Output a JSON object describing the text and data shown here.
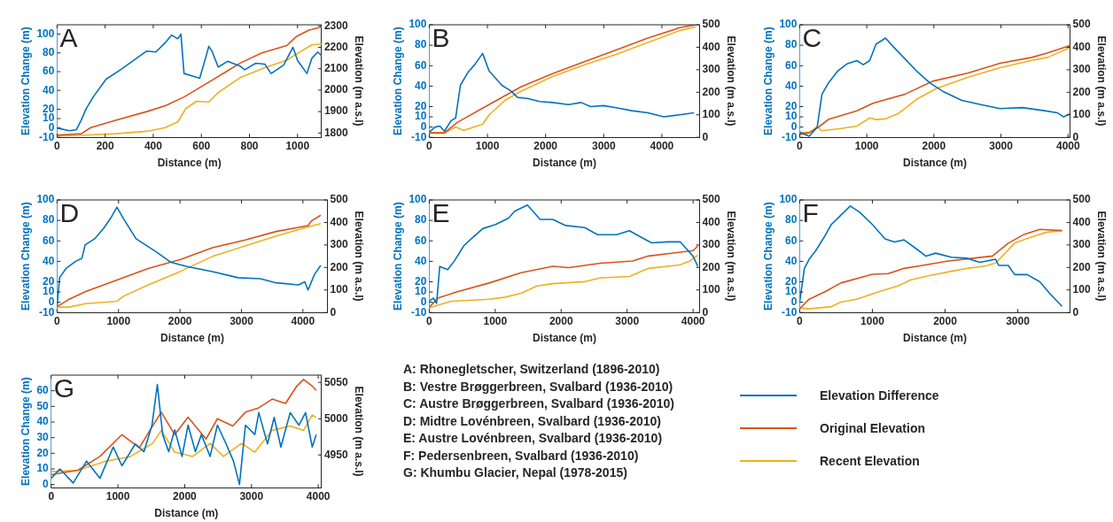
{
  "chart_data": [
    {
      "type": "line",
      "title": "A",
      "xlabel": "Distance (m)",
      "ylabel": "Elevation Change (m)",
      "y2label": "Elevation (m a.s.l)",
      "xlim": [
        0,
        1100
      ],
      "xticks": [
        0,
        200,
        400,
        600,
        800,
        1000
      ],
      "ylim": [
        -10,
        110
      ],
      "yticks": [
        -10,
        0,
        10,
        20,
        40,
        60,
        80,
        100
      ],
      "y2lim": [
        1780,
        2305
      ],
      "y2ticks": [
        1800,
        1900,
        2000,
        2100,
        2200,
        2300
      ],
      "legend": false,
      "grid": false,
      "series": [
        {
          "color": "#0072bd",
          "x": [
            0,
            50,
            80,
            100,
            120,
            150,
            204,
            269,
            334,
            373,
            411,
            450,
            476,
            502,
            515,
            528,
            567,
            593,
            618,
            631,
            644,
            670,
            709,
            761,
            780,
            826,
            864,
            890,
            942,
            981,
            1000,
            1039,
            1059,
            1084,
            1100
          ],
          "values": [
            0,
            -3,
            -2,
            8,
            20,
            33,
            52,
            63,
            75,
            82,
            81,
            91,
            99,
            95,
            100,
            58,
            55,
            53,
            75,
            87,
            82,
            65,
            71,
            66,
            62,
            69,
            68,
            58,
            67,
            86,
            72,
            58,
            74,
            81,
            77
          ]
        },
        {
          "color": "#d95319",
          "axis": "y2",
          "x": [
            0,
            101,
            140,
            243,
            373,
            450,
            528,
            631,
            761,
            852,
            955,
            994,
            1046,
            1100
          ],
          "values": [
            1790,
            1797,
            1825,
            1859,
            1900,
            1927,
            1968,
            2037,
            2126,
            2174,
            2208,
            2249,
            2279,
            2295
          ]
        },
        {
          "color": "#edb120",
          "axis": "y2",
          "x": [
            0,
            114,
            243,
            373,
            450,
            502,
            535,
            580,
            631,
            670,
            761,
            864,
            955,
            994,
            1059,
            1100
          ],
          "values": [
            1786,
            1790,
            1797,
            1808,
            1825,
            1852,
            1914,
            1948,
            1945,
            1989,
            2058,
            2105,
            2140,
            2167,
            2211,
            2215
          ]
        }
      ]
    },
    {
      "type": "line",
      "title": "B",
      "xlabel": "Distance (m)",
      "ylabel": "Elevation Change (m)",
      "y2label": "Elevation (m a.s.l)",
      "xlim": [
        0,
        4650
      ],
      "xticks": [
        0,
        1000,
        2000,
        3000,
        4000
      ],
      "ylim": [
        -10,
        100
      ],
      "yticks": [
        -10,
        0,
        10,
        20,
        40,
        60,
        80,
        100
      ],
      "y2lim": [
        0,
        500
      ],
      "y2ticks": [
        0,
        100,
        200,
        300,
        400,
        500
      ],
      "legend": false,
      "grid": false,
      "series": [
        {
          "color": "#0072bd",
          "x": [
            0,
            98,
            180,
            262,
            372,
            454,
            536,
            672,
            781,
            918,
            1027,
            1246,
            1410,
            1519,
            1683,
            1902,
            2120,
            2393,
            2612,
            2776,
            2995,
            3213,
            3486,
            3760,
            4033,
            4306,
            4552
          ],
          "values": [
            -5,
            0,
            1,
            -4,
            6,
            9,
            41,
            54,
            61,
            72,
            55,
            41,
            35,
            29,
            28,
            25,
            24,
            22,
            24,
            20,
            21,
            19,
            16,
            14,
            10,
            12,
            14
          ]
        },
        {
          "color": "#d95319",
          "axis": "y2",
          "x": [
            0,
            262,
            481,
            1027,
            1574,
            2120,
            2667,
            3213,
            3760,
            4306,
            4580
          ],
          "values": [
            20,
            20,
            66,
            145,
            224,
            283,
            336,
            388,
            441,
            487,
            500
          ]
        },
        {
          "color": "#edb120",
          "axis": "y2",
          "x": [
            0,
            262,
            454,
            590,
            918,
            1027,
            1300,
            1574,
            2120,
            2667,
            3213,
            3760,
            4306,
            4579
          ],
          "values": [
            18,
            18,
            46,
            30,
            59,
            99,
            164,
            204,
            270,
            322,
            368,
            421,
            474,
            491
          ]
        }
      ]
    },
    {
      "type": "line",
      "title": "C",
      "xlabel": "Distance (m)",
      "ylabel": "Elevation Change (m)",
      "y2label": "Elevation (m a.s.l)",
      "xlim": [
        0,
        4030
      ],
      "xticks": [
        0,
        1000,
        2000,
        3000,
        4000
      ],
      "ylim": [
        -10,
        100
      ],
      "yticks": [
        -10,
        0,
        10,
        20,
        40,
        60,
        80,
        100
      ],
      "y2lim": [
        0,
        500
      ],
      "y2ticks": [
        0,
        100,
        200,
        300,
        400,
        500
      ],
      "legend": false,
      "grid": false,
      "series": [
        {
          "color": "#0072bd",
          "x": [
            0,
            142,
            261,
            332,
            427,
            569,
            711,
            853,
            948,
            1043,
            1137,
            1280,
            1374,
            1564,
            1754,
            1943,
            2133,
            2417,
            2701,
            2986,
            3318,
            3649,
            3839,
            3934,
            4028
          ],
          "values": [
            -5,
            -9,
            0,
            32,
            43,
            55,
            62,
            65,
            61,
            65,
            81,
            87,
            80,
            67,
            54,
            43,
            35,
            26,
            22,
            18,
            19,
            16,
            14,
            10,
            13
          ]
        },
        {
          "color": "#d95319",
          "axis": "y2",
          "x": [
            0,
            142,
            284,
            427,
            853,
            1090,
            1564,
            1990,
            2512,
            2986,
            3460,
            3697,
            4028
          ],
          "values": [
            13,
            20,
            46,
            79,
            118,
            151,
            191,
            250,
            286,
            329,
            355,
            375,
            408
          ]
        },
        {
          "color": "#edb120",
          "axis": "y2",
          "x": [
            0,
            142,
            261,
            332,
            616,
            853,
            1043,
            1137,
            1280,
            1469,
            1754,
            2038,
            2512,
            2986,
            3460,
            3697,
            4028
          ],
          "values": [
            22,
            22,
            46,
            29,
            39,
            50,
            86,
            79,
            82,
            105,
            171,
            217,
            267,
            309,
            342,
            355,
            399
          ]
        }
      ]
    },
    {
      "type": "line",
      "title": "D",
      "xlabel": "Distance (m)",
      "ylabel": "Elevation Change (m)",
      "y2label": "Elevation (m a.s.l)",
      "xlim": [
        0,
        4400
      ],
      "xticks": [
        0,
        1000,
        2000,
        3000,
        4000
      ],
      "ylim": [
        -10,
        100
      ],
      "yticks": [
        -10,
        0,
        10,
        20,
        40,
        60,
        80,
        100
      ],
      "y2lim": [
        0,
        500
      ],
      "y2ticks": [
        0,
        100,
        200,
        300,
        400,
        500
      ],
      "legend": false,
      "grid": false,
      "series": [
        {
          "color": "#0072bd",
          "x": [
            0,
            41,
            145,
            301,
            404,
            456,
            611,
            767,
            870,
            974,
            1078,
            1285,
            1596,
            1855,
            2114,
            2528,
            2943,
            3306,
            3565,
            3927,
            4031,
            4083,
            4187,
            4290
          ],
          "values": [
            -4,
            24,
            33,
            40,
            43,
            56,
            62,
            73,
            82,
            93,
            82,
            62,
            50,
            39,
            35,
            30,
            24,
            23,
            19,
            17,
            20,
            12,
            27,
            36
          ]
        },
        {
          "color": "#d95319",
          "axis": "y2",
          "x": [
            0,
            197,
            456,
            974,
            1492,
            2010,
            2528,
            3047,
            3565,
            4083,
            4135,
            4290
          ],
          "values": [
            26,
            59,
            92,
            144,
            196,
            236,
            288,
            321,
            360,
            386,
            406,
            432
          ]
        },
        {
          "color": "#edb120",
          "axis": "y2",
          "x": [
            0,
            197,
            456,
            974,
            1078,
            1492,
            2010,
            2528,
            3047,
            3565,
            4083,
            4290
          ],
          "values": [
            24,
            24,
            39,
            50,
            72,
            124,
            183,
            249,
            295,
            340,
            380,
            395
          ]
        }
      ]
    },
    {
      "type": "line",
      "title": "E",
      "xlabel": "Distance (m)",
      "ylabel": "Elevation Change (m)",
      "y2label": "Elevation (m a.s.l)",
      "xlim": [
        0,
        4100
      ],
      "xticks": [
        0,
        1000,
        2000,
        3000,
        4000
      ],
      "ylim": [
        -10,
        100
      ],
      "yticks": [
        -10,
        0,
        10,
        20,
        40,
        60,
        80,
        100
      ],
      "y2lim": [
        0,
        500
      ],
      "y2ticks": [
        0,
        100,
        200,
        300,
        400,
        500
      ],
      "legend": false,
      "grid": false,
      "series": [
        {
          "color": "#0072bd",
          "x": [
            0,
            63,
            111,
            159,
            280,
            377,
            522,
            618,
            812,
            1005,
            1198,
            1295,
            1488,
            1681,
            1874,
            2068,
            2357,
            2551,
            2841,
            3034,
            3227,
            3372,
            3614,
            3807,
            4000,
            4072
          ],
          "values": [
            1,
            4,
            -1,
            35,
            32,
            40,
            55,
            61,
            72,
            76,
            82,
            89,
            95,
            81,
            81,
            75,
            73,
            66,
            66,
            70,
            63,
            58,
            59,
            59,
            45,
            35
          ]
        },
        {
          "color": "#d95319",
          "axis": "y2",
          "x": [
            0,
            135,
            425,
            908,
            1391,
            1874,
            2116,
            2599,
            3082,
            3324,
            3807,
            4000,
            4072
          ],
          "values": [
            24,
            65,
            92,
            131,
            177,
            205,
            199,
            219,
            229,
            251,
            268,
            275,
            295
          ]
        },
        {
          "color": "#edb120",
          "axis": "y2",
          "x": [
            0,
            184,
            329,
            908,
            1150,
            1391,
            1633,
            1874,
            2357,
            2599,
            3034,
            3324,
            3807,
            3952,
            4072
          ],
          "values": [
            20,
            37,
            50,
            59,
            68,
            85,
            118,
            128,
            137,
            154,
            160,
            196,
            212,
            229,
            255
          ]
        }
      ]
    },
    {
      "type": "line",
      "title": "F",
      "xlabel": "Distance (m)",
      "ylabel": "Elevation Change (m)",
      "y2label": "Elevation (m a.s.l)",
      "xlim": [
        0,
        3720
      ],
      "xticks": [
        0,
        1000,
        2000,
        3000
      ],
      "ylim": [
        -10,
        100
      ],
      "yticks": [
        -10,
        0,
        10,
        20,
        40,
        60,
        80,
        100
      ],
      "y2lim": [
        0,
        500
      ],
      "y2ticks": [
        0,
        100,
        200,
        300,
        400,
        500
      ],
      "legend": false,
      "grid": false,
      "series": [
        {
          "color": "#0072bd",
          "x": [
            0,
            65,
            130,
            217,
            348,
            435,
            565,
            696,
            826,
            1000,
            1174,
            1304,
            1435,
            1609,
            1739,
            1870,
            2087,
            2304,
            2478,
            2696,
            2739,
            2870,
            2957,
            3130,
            3304,
            3435,
            3609
          ],
          "values": [
            0,
            33,
            42,
            50,
            65,
            76,
            85,
            94,
            88,
            76,
            62,
            59,
            61,
            52,
            45,
            48,
            44,
            43,
            39,
            42,
            36,
            36,
            27,
            27,
            20,
            9,
            -4
          ]
        },
        {
          "color": "#d95319",
          "axis": "y2",
          "x": [
            0,
            130,
            348,
            565,
            1000,
            1217,
            1435,
            1652,
            2043,
            2304,
            2652,
            2870,
            3087,
            3304,
            3609
          ],
          "values": [
            17,
            59,
            92,
            131,
            170,
            173,
            196,
            207,
            229,
            238,
            251,
            308,
            347,
            369,
            364
          ]
        },
        {
          "color": "#edb120",
          "axis": "y2",
          "x": [
            0,
            130,
            435,
            565,
            783,
            1087,
            1348,
            1522,
            1783,
            2087,
            2304,
            2565,
            2696,
            2957,
            3174,
            3391,
            3609
          ],
          "values": [
            20,
            16,
            26,
            46,
            59,
            92,
            118,
            144,
            164,
            183,
            196,
            207,
            220,
            308,
            334,
            356,
            364
          ]
        }
      ]
    },
    {
      "type": "line",
      "title": "G",
      "xlabel": "Distance (m)",
      "ylabel": "Elevation Change (m)",
      "y2label": "Elevation (m a.s.l)",
      "xlim": [
        0,
        4050
      ],
      "xticks": [
        0,
        1000,
        2000,
        3000,
        4000
      ],
      "ylim": [
        -2,
        70
      ],
      "yticks": [
        0,
        10,
        20,
        30,
        40,
        50,
        60
      ],
      "y2lim": [
        4905,
        5060
      ],
      "y2ticks": [
        4950,
        5000,
        5050
      ],
      "legend": "right",
      "grid": false,
      "series": [
        {
          "name": "Elevation Difference",
          "color": "#0072bd",
          "x": [
            0,
            130,
            330,
            530,
            730,
            930,
            1060,
            1260,
            1390,
            1510,
            1590,
            1670,
            1760,
            1850,
            1960,
            2050,
            2160,
            2250,
            2380,
            2490,
            2620,
            2730,
            2820,
            2910,
            3050,
            3110,
            3240,
            3340,
            3440,
            3580,
            3710,
            3810,
            3910,
            3970
          ],
          "values": [
            4,
            10,
            1,
            15,
            4,
            24,
            12,
            26,
            21,
            38,
            64,
            32,
            21,
            35,
            18,
            38,
            21,
            32,
            18,
            38,
            26,
            15,
            0,
            38,
            32,
            46,
            26,
            43,
            24,
            46,
            38,
            46,
            24,
            32
          ]
        },
        {
          "name": "Original Elevation",
          "color": "#d95319",
          "axis": "y2",
          "x": [
            0,
            400,
            730,
            1060,
            1320,
            1520,
            1650,
            1850,
            2050,
            2320,
            2490,
            2720,
            2910,
            3110,
            3310,
            3510,
            3680,
            3780,
            3910,
            3970
          ],
          "values": [
            4923,
            4929,
            4948,
            4978,
            4960,
            4990,
            5009,
            4978,
            5002,
            4972,
            5000,
            4990,
            5009,
            5015,
            5027,
            5021,
            5045,
            5054,
            5045,
            5039
          ]
        },
        {
          "name": "Recent Elevation",
          "color": "#edb120",
          "axis": "y2",
          "x": [
            0,
            400,
            800,
            1190,
            1520,
            1650,
            1850,
            2120,
            2380,
            2580,
            2850,
            3050,
            3310,
            3580,
            3780,
            3910,
            3970
          ],
          "values": [
            4927,
            4929,
            4941,
            4948,
            4966,
            4984,
            4954,
            4948,
            4966,
            4948,
            4966,
            4954,
            4984,
            4990,
            4984,
            5005,
            5002
          ]
        }
      ]
    },
    {
      "type": "other",
      "annotations": [
        "A: Rhonegletscher, Switzerland (1896-2010)",
        "B: Vestre Brøggerbreen, Svalbard (1936-2010)",
        "C: Austre Brøggerbreen, Svalbard (1936-2010)",
        "D: Midtre Lovénbreen, Svalbard (1936-2010)",
        "E: Austre Lovénbreen, Svalbard (1936-2010)",
        "F: Pedersenbreen, Svalbard (1936-2010)",
        "G: Khumbu Glacier, Nepal (1978-2015)"
      ]
    }
  ]
}
